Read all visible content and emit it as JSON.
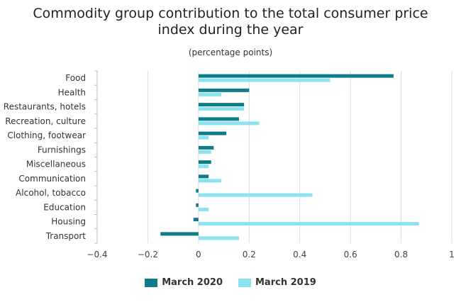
{
  "chart_data": {
    "type": "bar",
    "orientation": "horizontal",
    "title": "Commodity group contribution to the total consumer price\nindex during the year",
    "subtitle": "(percentage points)",
    "categories": [
      "Food",
      "Health",
      "Restaurants, hotels",
      "Recreation, culture",
      "Clothing, footwear",
      "Furnishings",
      "Miscellaneous",
      "Communication",
      "Alcohol, tobacco",
      "Education",
      "Housing",
      "Transport"
    ],
    "series": [
      {
        "name": "March 2020",
        "color": "#0e7c8b",
        "values": [
          0.77,
          0.2,
          0.18,
          0.16,
          0.11,
          0.06,
          0.05,
          0.04,
          -0.01,
          -0.01,
          -0.02,
          -0.15
        ]
      },
      {
        "name": "March 2019",
        "color": "#8be3f0",
        "values": [
          0.52,
          0.09,
          0.18,
          0.24,
          0.04,
          0.05,
          0.04,
          0.09,
          0.45,
          0.04,
          0.87,
          0.16
        ]
      }
    ],
    "xlim": [
      -0.4,
      1
    ],
    "xticks": [
      "−0.4",
      "−0.2",
      "0",
      "0.2",
      "0.4",
      "0.6",
      "0.8",
      "1"
    ],
    "grid": true,
    "legend": "bottom"
  }
}
